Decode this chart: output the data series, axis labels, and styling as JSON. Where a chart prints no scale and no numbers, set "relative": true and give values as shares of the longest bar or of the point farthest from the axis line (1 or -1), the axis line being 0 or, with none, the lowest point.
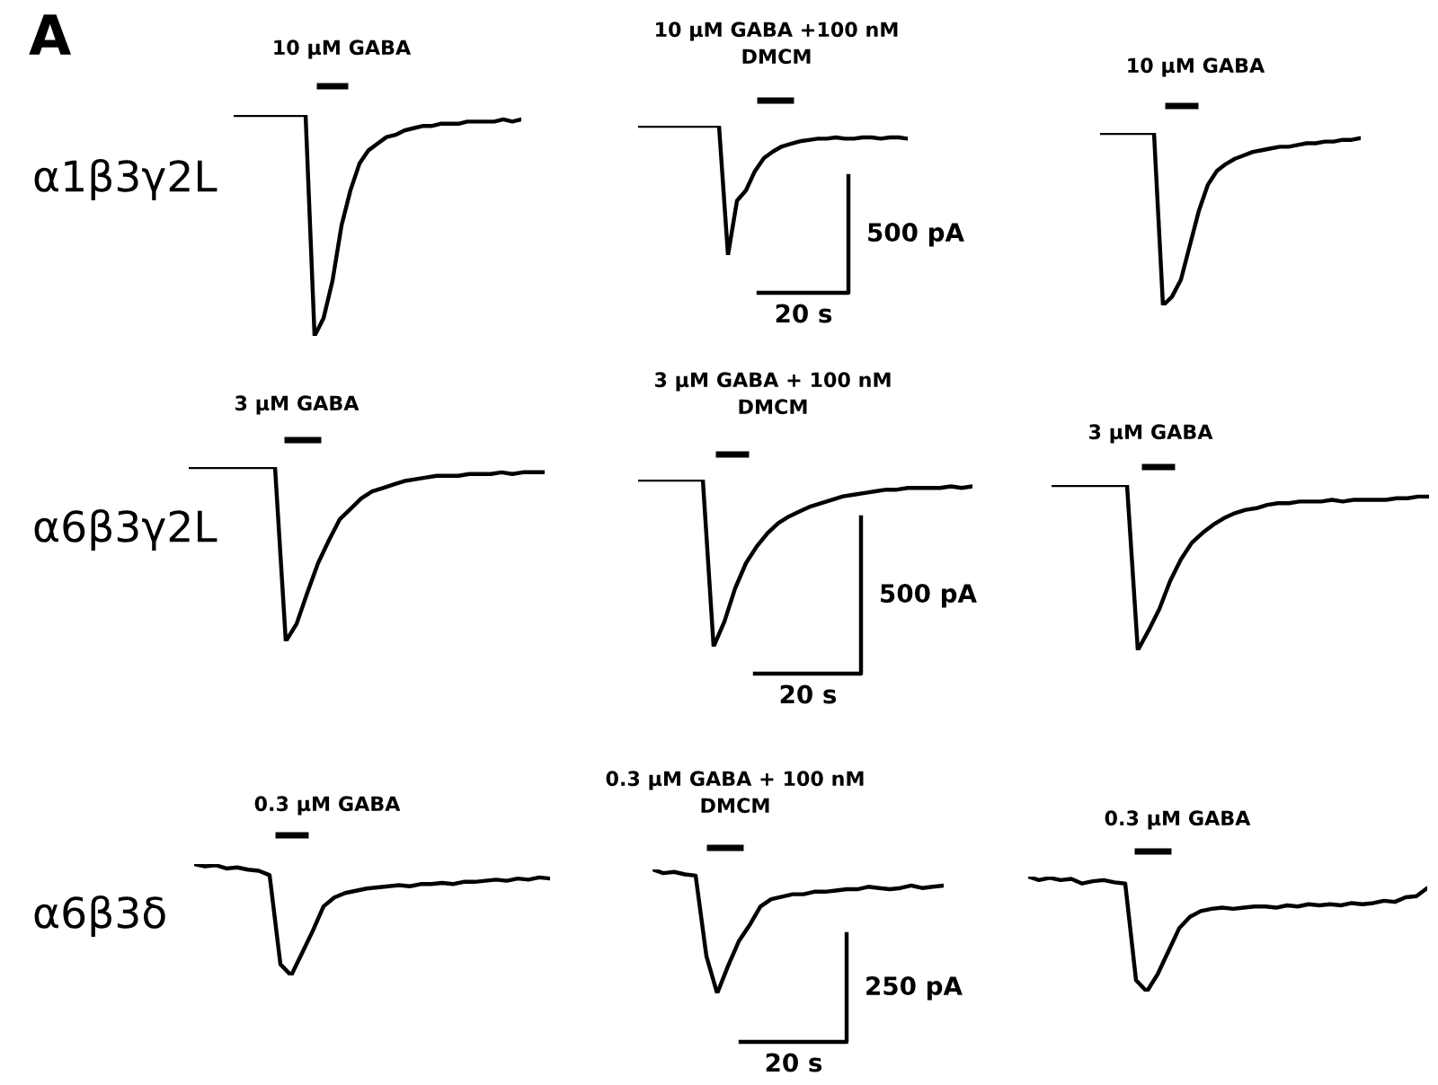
{
  "chart_data": [
    {
      "type": "line",
      "relative": true,
      "color": "#000000",
      "title": "10 µM GABA",
      "ylabel": "α1β3γ2L",
      "annotations": [
        "A"
      ],
      "categories": [
        null,
        null,
        null,
        null,
        null,
        null,
        null,
        null,
        null,
        null,
        null,
        null,
        null,
        null,
        null,
        null,
        null,
        null,
        null,
        null,
        null,
        null,
        null,
        null,
        null,
        null,
        null,
        null,
        null,
        null,
        null,
        null,
        null
      ],
      "values": [
        1.0,
        1.0,
        1.0,
        1.0,
        1.0,
        1.0,
        1.0,
        1.0,
        1.0,
        0.0,
        0.08,
        0.25,
        0.5,
        0.66,
        0.78,
        0.84,
        0.87,
        0.9,
        0.91,
        0.93,
        0.94,
        0.95,
        0.95,
        0.96,
        0.96,
        0.96,
        0.97,
        0.97,
        0.97,
        0.97,
        0.98,
        0.97,
        0.98
      ]
    },
    {
      "type": "line",
      "relative": true,
      "color": "#000000",
      "title": "10 µM GABA +100 nM\nDMCM",
      "annotations": [
        "500 pA",
        "20 s"
      ],
      "categories": [
        null,
        null,
        null,
        null,
        null,
        null,
        null,
        null,
        null,
        null,
        null,
        null,
        null,
        null,
        null,
        null,
        null,
        null,
        null,
        null,
        null,
        null,
        null,
        null,
        null,
        null,
        null,
        null,
        null,
        null,
        null
      ],
      "values": [
        1.0,
        1.0,
        1.0,
        1.0,
        1.0,
        1.0,
        1.0,
        1.0,
        1.0,
        1.0,
        0.0,
        0.42,
        0.5,
        0.65,
        0.75,
        0.8,
        0.84,
        0.86,
        0.88,
        0.89,
        0.9,
        0.9,
        0.91,
        0.9,
        0.9,
        0.91,
        0.91,
        0.9,
        0.91,
        0.91,
        0.9
      ]
    },
    {
      "type": "line",
      "relative": true,
      "color": "#000000",
      "title": "10 µM GABA",
      "categories": [
        null,
        null,
        null,
        null,
        null,
        null,
        null,
        null,
        null,
        null,
        null,
        null,
        null,
        null,
        null,
        null,
        null,
        null,
        null,
        null,
        null,
        null,
        null,
        null,
        null,
        null,
        null,
        null,
        null,
        null
      ],
      "values": [
        1.0,
        1.0,
        1.0,
        1.0,
        1.0,
        1.0,
        1.0,
        0.0,
        0.05,
        0.15,
        0.35,
        0.55,
        0.7,
        0.78,
        0.82,
        0.85,
        0.87,
        0.89,
        0.9,
        0.91,
        0.92,
        0.92,
        0.93,
        0.94,
        0.94,
        0.95,
        0.95,
        0.96,
        0.96,
        0.97
      ]
    },
    {
      "type": "line",
      "relative": true,
      "color": "#000000",
      "title": "3 µM GABA",
      "ylabel": "α6β3γ2L",
      "categories": [
        null,
        null,
        null,
        null,
        null,
        null,
        null,
        null,
        null,
        null,
        null,
        null,
        null,
        null,
        null,
        null,
        null,
        null,
        null,
        null,
        null,
        null,
        null,
        null,
        null,
        null,
        null,
        null,
        null,
        null,
        null,
        null,
        null,
        null
      ],
      "values": [
        1.0,
        1.0,
        1.0,
        1.0,
        1.0,
        1.0,
        1.0,
        1.0,
        1.0,
        0.0,
        0.1,
        0.28,
        0.45,
        0.58,
        0.7,
        0.76,
        0.82,
        0.86,
        0.88,
        0.9,
        0.92,
        0.93,
        0.94,
        0.95,
        0.95,
        0.95,
        0.96,
        0.96,
        0.96,
        0.97,
        0.96,
        0.97,
        0.97,
        0.97
      ]
    },
    {
      "type": "line",
      "relative": true,
      "color": "#000000",
      "title": "3 µM GABA + 100 nM\nDMCM",
      "annotations": [
        "500 pA",
        "20 s"
      ],
      "categories": [
        null,
        null,
        null,
        null,
        null,
        null,
        null,
        null,
        null,
        null,
        null,
        null,
        null,
        null,
        null,
        null,
        null,
        null,
        null,
        null,
        null,
        null,
        null,
        null,
        null,
        null,
        null,
        null,
        null,
        null,
        null,
        null
      ],
      "values": [
        1.0,
        1.0,
        1.0,
        1.0,
        1.0,
        1.0,
        1.0,
        0.0,
        0.15,
        0.35,
        0.5,
        0.6,
        0.68,
        0.74,
        0.78,
        0.81,
        0.84,
        0.86,
        0.88,
        0.9,
        0.91,
        0.92,
        0.93,
        0.94,
        0.94,
        0.95,
        0.95,
        0.95,
        0.95,
        0.96,
        0.95,
        0.96
      ]
    },
    {
      "type": "line",
      "relative": true,
      "color": "#000000",
      "title": "3 µM GABA",
      "categories": [
        null,
        null,
        null,
        null,
        null,
        null,
        null,
        null,
        null,
        null,
        null,
        null,
        null,
        null,
        null,
        null,
        null,
        null,
        null,
        null,
        null,
        null,
        null,
        null,
        null,
        null,
        null,
        null,
        null,
        null,
        null,
        null,
        null,
        null,
        null,
        null
      ],
      "values": [
        1.0,
        1.0,
        1.0,
        1.0,
        1.0,
        1.0,
        1.0,
        1.0,
        0.0,
        0.12,
        0.25,
        0.42,
        0.55,
        0.65,
        0.71,
        0.76,
        0.8,
        0.83,
        0.85,
        0.86,
        0.88,
        0.89,
        0.89,
        0.9,
        0.9,
        0.9,
        0.91,
        0.9,
        0.91,
        0.91,
        0.91,
        0.91,
        0.92,
        0.92,
        0.93,
        0.93
      ]
    },
    {
      "type": "line",
      "relative": true,
      "color": "#000000",
      "title": "0.3 µM GABA",
      "ylabel": "α6β3δ",
      "categories": [
        null,
        null,
        null,
        null,
        null,
        null,
        null,
        null,
        null,
        null,
        null,
        null,
        null,
        null,
        null,
        null,
        null,
        null,
        null,
        null,
        null,
        null,
        null,
        null,
        null,
        null,
        null,
        null,
        null,
        null,
        null,
        null,
        null,
        null
      ],
      "values": [
        1.0,
        0.98,
        0.99,
        0.96,
        0.97,
        0.95,
        0.94,
        0.9,
        0.1,
        0.0,
        0.2,
        0.4,
        0.62,
        0.7,
        0.74,
        0.76,
        0.78,
        0.79,
        0.8,
        0.81,
        0.8,
        0.82,
        0.82,
        0.83,
        0.82,
        0.84,
        0.84,
        0.85,
        0.86,
        0.85,
        0.87,
        0.86,
        0.88,
        0.87
      ]
    },
    {
      "type": "line",
      "relative": true,
      "color": "#000000",
      "title": "0.3 µM GABA + 100 nM\nDMCM",
      "annotations": [
        "250 pA",
        "20 s"
      ],
      "categories": [
        null,
        null,
        null,
        null,
        null,
        null,
        null,
        null,
        null,
        null,
        null,
        null,
        null,
        null,
        null,
        null,
        null,
        null,
        null,
        null,
        null,
        null,
        null,
        null,
        null,
        null,
        null,
        null
      ],
      "values": [
        1.0,
        0.97,
        0.98,
        0.96,
        0.95,
        0.3,
        0.0,
        0.22,
        0.42,
        0.55,
        0.7,
        0.76,
        0.78,
        0.8,
        0.8,
        0.82,
        0.82,
        0.83,
        0.84,
        0.84,
        0.86,
        0.85,
        0.84,
        0.85,
        0.87,
        0.85,
        0.86,
        0.87
      ]
    },
    {
      "type": "line",
      "relative": true,
      "color": "#000000",
      "title": "0.3 µM GABA",
      "categories": [
        null,
        null,
        null,
        null,
        null,
        null,
        null,
        null,
        null,
        null,
        null,
        null,
        null,
        null,
        null,
        null,
        null,
        null,
        null,
        null,
        null,
        null,
        null,
        null,
        null,
        null,
        null,
        null,
        null,
        null,
        null,
        null,
        null,
        null,
        null,
        null,
        null,
        null
      ],
      "values": [
        1.0,
        0.97,
        0.99,
        0.97,
        0.98,
        0.94,
        0.96,
        0.97,
        0.95,
        0.94,
        0.1,
        0.0,
        0.15,
        0.35,
        0.55,
        0.65,
        0.7,
        0.72,
        0.73,
        0.72,
        0.73,
        0.74,
        0.74,
        0.73,
        0.75,
        0.74,
        0.76,
        0.75,
        0.76,
        0.75,
        0.77,
        0.76,
        0.77,
        0.79,
        0.78,
        0.82,
        0.83,
        0.9
      ]
    }
  ]
}
